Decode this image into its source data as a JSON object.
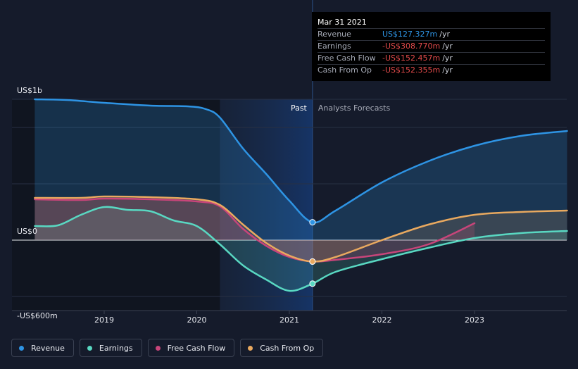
{
  "tooltip": {
    "date": "Mar 31 2021",
    "rows": [
      {
        "label": "Revenue",
        "value": "US$127.327m",
        "unit": "/yr"
      },
      {
        "label": "Earnings",
        "value": "-US$308.770m",
        "unit": "/yr"
      },
      {
        "label": "Free Cash Flow",
        "value": "-US$152.457m",
        "unit": "/yr"
      },
      {
        "label": "Cash From Op",
        "value": "-US$152.355m",
        "unit": "/yr"
      }
    ]
  },
  "legend": [
    {
      "label": "Revenue",
      "color": "#2e94e4"
    },
    {
      "label": "Earnings",
      "color": "#59d8c2"
    },
    {
      "label": "Free Cash Flow",
      "color": "#c8457a"
    },
    {
      "label": "Cash From Op",
      "color": "#e9a95f"
    }
  ],
  "chart_data": {
    "type": "line",
    "y_tick_labels": [
      "US$1b",
      "US$0",
      "-US$600m"
    ],
    "x_tick_labels": [
      "2019",
      "2020",
      "2021",
      "2022",
      "2023"
    ],
    "region_labels": {
      "past": "Past",
      "forecast": "Analysts Forecasts"
    },
    "ylim": [
      -600,
      1000
    ],
    "past_end": 2021.25,
    "series": [
      {
        "name": "Revenue",
        "color": "#2e94e4",
        "points": [
          [
            2018.25,
            1000
          ],
          [
            2018.6,
            995
          ],
          [
            2019.0,
            975
          ],
          [
            2019.5,
            955
          ],
          [
            2019.9,
            950
          ],
          [
            2020.1,
            930
          ],
          [
            2020.25,
            870
          ],
          [
            2020.5,
            650
          ],
          [
            2020.75,
            470
          ],
          [
            2021.0,
            280
          ],
          [
            2021.25,
            127
          ],
          [
            2021.5,
            210
          ],
          [
            2022.0,
            410
          ],
          [
            2022.5,
            560
          ],
          [
            2023.0,
            670
          ],
          [
            2023.5,
            740
          ],
          [
            2024.0,
            775
          ]
        ]
      },
      {
        "name": "Earnings",
        "color": "#59d8c2",
        "points": [
          [
            2018.25,
            100
          ],
          [
            2018.5,
            105
          ],
          [
            2018.75,
            180
          ],
          [
            2019.0,
            235
          ],
          [
            2019.25,
            215
          ],
          [
            2019.5,
            205
          ],
          [
            2019.75,
            140
          ],
          [
            2020.0,
            100
          ],
          [
            2020.25,
            -30
          ],
          [
            2020.5,
            -180
          ],
          [
            2020.75,
            -280
          ],
          [
            2021.0,
            -360
          ],
          [
            2021.25,
            -309
          ],
          [
            2021.5,
            -225
          ],
          [
            2022.0,
            -135
          ],
          [
            2022.5,
            -55
          ],
          [
            2023.0,
            15
          ],
          [
            2023.5,
            50
          ],
          [
            2024.0,
            65
          ]
        ]
      },
      {
        "name": "Free Cash Flow",
        "color": "#c8457a",
        "points": [
          [
            2018.25,
            290
          ],
          [
            2018.75,
            285
          ],
          [
            2019.0,
            295
          ],
          [
            2019.5,
            290
          ],
          [
            2020.0,
            275
          ],
          [
            2020.25,
            240
          ],
          [
            2020.5,
            80
          ],
          [
            2020.75,
            -40
          ],
          [
            2021.0,
            -120
          ],
          [
            2021.25,
            -152
          ],
          [
            2021.5,
            -140
          ],
          [
            2022.0,
            -100
          ],
          [
            2022.5,
            -30
          ],
          [
            2023.0,
            120
          ]
        ]
      },
      {
        "name": "Cash From Op",
        "color": "#e9a95f",
        "points": [
          [
            2018.25,
            300
          ],
          [
            2018.75,
            300
          ],
          [
            2019.0,
            310
          ],
          [
            2019.5,
            305
          ],
          [
            2020.0,
            290
          ],
          [
            2020.25,
            250
          ],
          [
            2020.5,
            110
          ],
          [
            2020.75,
            -20
          ],
          [
            2021.0,
            -110
          ],
          [
            2021.25,
            -152
          ],
          [
            2021.5,
            -120
          ],
          [
            2022.0,
            0
          ],
          [
            2022.5,
            110
          ],
          [
            2023.0,
            180
          ],
          [
            2023.5,
            200
          ],
          [
            2024.0,
            210
          ]
        ]
      }
    ]
  }
}
